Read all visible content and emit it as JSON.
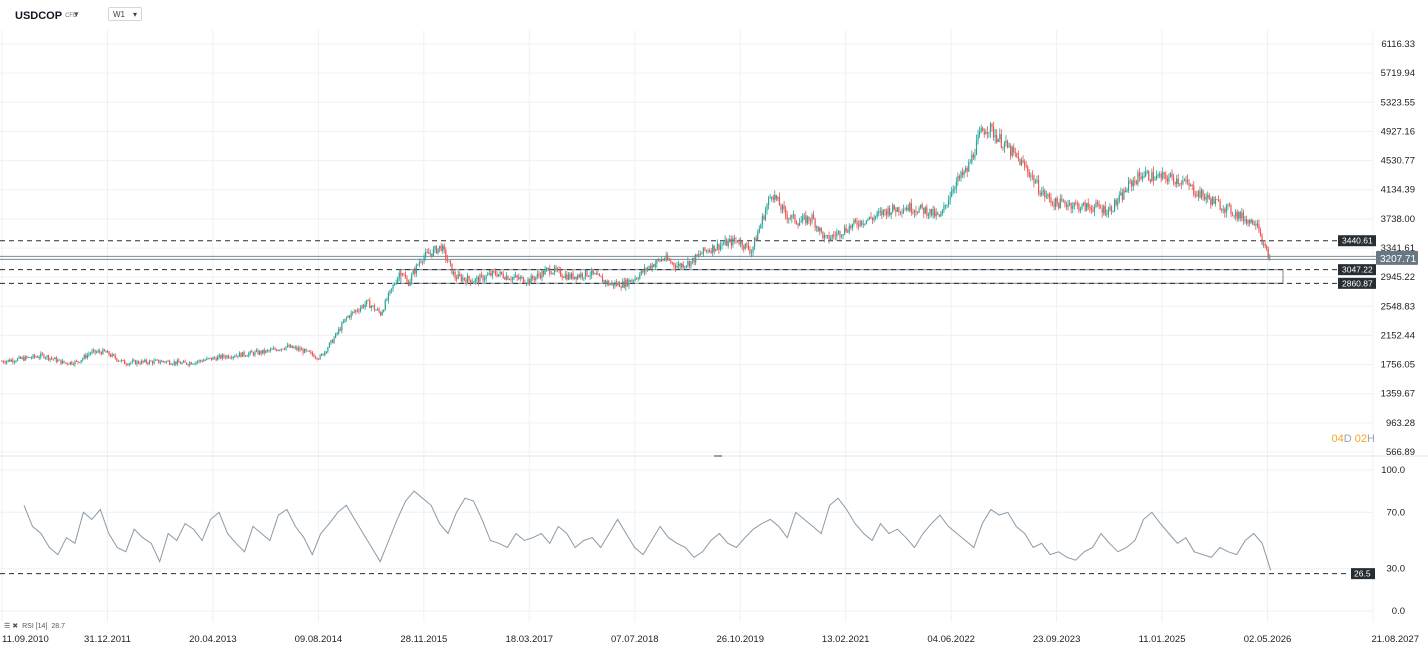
{
  "header": {
    "symbol": "USDCOP",
    "symbol_suffix": "CFD",
    "timeframe": "W1",
    "dropdown_icon": "caret-down-icon"
  },
  "countdown": {
    "days": "04",
    "day_unit": "D",
    "hours": "02",
    "hour_unit": "H"
  },
  "rsi_legend": {
    "label": "RSI [14]",
    "value": "28.7",
    "icons": [
      "list-icon",
      "close-icon"
    ]
  },
  "colors": {
    "up": "#26a69a",
    "down": "#ef5350",
    "rsi_line": "#8a9aa8",
    "grid": "#eef0f3",
    "label_bg": "#262d33",
    "price_label_bg": "#677885",
    "zone": "#8e9aa6"
  },
  "chart_data": [
    {
      "type": "candlestick",
      "title": "USDCOP",
      "timeframe": "W1",
      "ylim": [
        566.89,
        6116.33
      ],
      "y_ticks": [
        "6116.33",
        "5719.94",
        "5323.55",
        "4927.16",
        "4530.77",
        "4134.39",
        "3738.00",
        "3341.61",
        "2945.22",
        "2548.83",
        "2152.44",
        "1756.05",
        "1359.67",
        "963.28",
        "566.89"
      ],
      "x_ticks": [
        "11.09.2010",
        "31.12.2011",
        "20.04.2013",
        "09.08.2014",
        "28.11.2015",
        "18.03.2017",
        "07.07.2018",
        "26.10.2019",
        "13.02.2021",
        "04.06.2022",
        "23.09.2023",
        "11.01.2025",
        "02.05.2026",
        "21.08.2027"
      ],
      "last_price": "3207.71",
      "levels": [
        {
          "value": 3440.61,
          "label": "3440.61",
          "style": "dashed"
        },
        {
          "value": 3047.22,
          "label": "3047.22",
          "style": "dashed"
        },
        {
          "value": 2860.87,
          "label": "2860.87",
          "style": "dashed"
        }
      ],
      "support_zone": [
        2860.87,
        3047.22
      ],
      "series": [
        {
          "points": [
            [
              "11.09.2010",
              1800
            ],
            [
              "01.2011",
              1850
            ],
            [
              "03.2011",
              1880
            ],
            [
              "06.2011",
              1780
            ],
            [
              "08.2011",
              1790
            ],
            [
              "10.2011",
              1920
            ],
            [
              "12.2011",
              1930
            ],
            [
              "03.2012",
              1780
            ],
            [
              "06.2012",
              1790
            ],
            [
              "09.2012",
              1800
            ],
            [
              "12.2012",
              1770
            ],
            [
              "03.2013",
              1820
            ],
            [
              "06.2013",
              1870
            ],
            [
              "09.2013",
              1900
            ],
            [
              "12.2013",
              1930
            ],
            [
              "03.2014",
              2000
            ],
            [
              "05.2014",
              1960
            ],
            [
              "08.2014",
              1850
            ],
            [
              "10.2014",
              2100
            ],
            [
              "12.2014",
              2400
            ],
            [
              "03.2015",
              2600
            ],
            [
              "05.2015",
              2450
            ],
            [
              "08.2015",
              3050
            ],
            [
              "09.2015",
              2850
            ],
            [
              "11.2015",
              3200
            ],
            [
              "02.2016",
              3360
            ],
            [
              "04.2016",
              2950
            ],
            [
              "07.2016",
              2900
            ],
            [
              "10.2016",
              3000
            ],
            [
              "12.2016",
              2950
            ],
            [
              "03.2017",
              2900
            ],
            [
              "06.2017",
              3050
            ],
            [
              "09.2017",
              2950
            ],
            [
              "12.2017",
              3000
            ],
            [
              "03.2018",
              2850
            ],
            [
              "05.2018",
              2850
            ],
            [
              "07.2018",
              2950
            ],
            [
              "09.2018",
              3100
            ],
            [
              "11.2018",
              3200
            ],
            [
              "01.2019",
              3100
            ],
            [
              "03.2019",
              3150
            ],
            [
              "05.2019",
              3300
            ],
            [
              "08.2019",
              3400
            ],
            [
              "10.2019",
              3450
            ],
            [
              "12.2019",
              3300
            ],
            [
              "03.2020",
              4100
            ],
            [
              "05.2020",
              3800
            ],
            [
              "07.2020",
              3700
            ],
            [
              "09.2020",
              3750
            ],
            [
              "11.2020",
              3450
            ],
            [
              "02.2021",
              3600
            ],
            [
              "04.2021",
              3700
            ],
            [
              "06.2021",
              3750
            ],
            [
              "08.2021",
              3850
            ],
            [
              "11.2021",
              3900
            ],
            [
              "02.2022",
              3850
            ],
            [
              "04.2022",
              3750
            ],
            [
              "06.2022",
              4200
            ],
            [
              "08.2022",
              4400
            ],
            [
              "10.2022",
              4900
            ],
            [
              "11.2022",
              5000
            ],
            [
              "01.2023",
              4800
            ],
            [
              "03.2023",
              4600
            ],
            [
              "05.2023",
              4400
            ],
            [
              "07.2023",
              4100
            ],
            [
              "09.2023",
              3950
            ],
            [
              "11.2023",
              3950
            ],
            [
              "01.2024",
              3900
            ],
            [
              "03.2024",
              3900
            ],
            [
              "05.2024",
              3850
            ],
            [
              "07.2024",
              4050
            ],
            [
              "08.2024",
              4200
            ],
            [
              "10.2024",
              4350
            ],
            [
              "12.2024",
              4300
            ],
            [
              "02.2025",
              4300
            ],
            [
              "04.2025",
              4250
            ],
            [
              "06.2025",
              4100
            ],
            [
              "08.2025",
              4000
            ],
            [
              "10.2025",
              3900
            ],
            [
              "12.2025",
              3800
            ],
            [
              "02.2026",
              3700
            ],
            [
              "03.2026",
              3720
            ],
            [
              "04.2026",
              3350
            ],
            [
              "05.2026",
              3207.71
            ]
          ]
        }
      ]
    },
    {
      "type": "line",
      "title": "RSI [14]",
      "ylim": [
        0,
        100
      ],
      "y_ticks": [
        "100.0",
        "70.0",
        "30.0",
        "0.0"
      ],
      "levels": [
        {
          "value": 26.5,
          "label": "26.5",
          "style": "dashed"
        }
      ],
      "series": [
        {
          "name": "RSI [14]",
          "values": [
            75,
            60,
            55,
            45,
            40,
            52,
            48,
            70,
            65,
            72,
            55,
            45,
            42,
            58,
            52,
            48,
            35,
            55,
            50,
            62,
            58,
            50,
            65,
            70,
            55,
            48,
            42,
            60,
            55,
            50,
            68,
            72,
            60,
            52,
            40,
            55,
            62,
            70,
            75,
            65,
            55,
            45,
            35,
            50,
            65,
            78,
            85,
            80,
            75,
            62,
            55,
            70,
            80,
            78,
            65,
            50,
            48,
            45,
            55,
            50,
            52,
            55,
            48,
            60,
            55,
            45,
            50,
            52,
            45,
            55,
            65,
            55,
            45,
            40,
            50,
            60,
            52,
            48,
            45,
            38,
            42,
            50,
            55,
            48,
            45,
            52,
            58,
            62,
            65,
            60,
            52,
            70,
            65,
            60,
            55,
            75,
            80,
            72,
            62,
            55,
            50,
            62,
            55,
            58,
            52,
            45,
            55,
            62,
            68,
            60,
            55,
            50,
            45,
            62,
            72,
            68,
            70,
            60,
            55,
            45,
            48,
            40,
            42,
            38,
            36,
            42,
            45,
            55,
            48,
            42,
            45,
            50,
            65,
            70,
            62,
            55,
            48,
            52,
            42,
            40,
            38,
            45,
            42,
            40,
            50,
            55,
            48,
            28.7
          ]
        }
      ]
    }
  ]
}
